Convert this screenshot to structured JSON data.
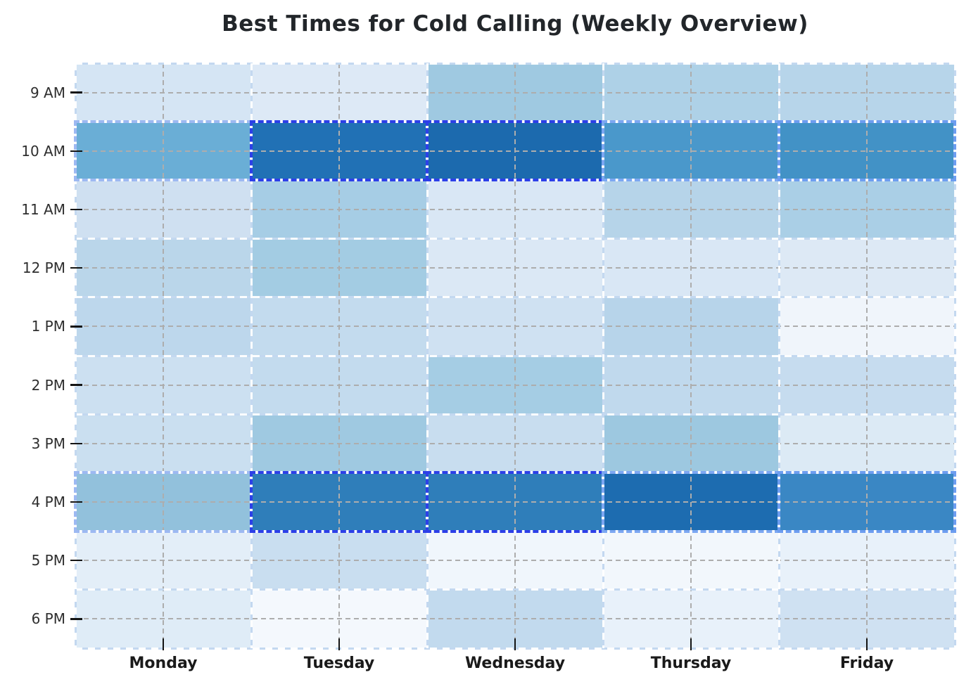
{
  "title": "Best Times for Cold Calling (Weekly Overview)",
  "chart_data": {
    "type": "heatmap",
    "title": "Best Times for Cold Calling (Weekly Overview)",
    "x_categories": [
      "Monday",
      "Tuesday",
      "Wednesday",
      "Thursday",
      "Friday"
    ],
    "y_categories": [
      "9 AM",
      "10 AM",
      "11 AM",
      "12 PM",
      "1 PM",
      "2 PM",
      "3 PM",
      "4 PM",
      "5 PM",
      "6 PM"
    ],
    "value_scale": [
      0,
      100
    ],
    "values": [
      [
        28,
        24,
        48,
        42,
        40
      ],
      [
        62,
        85,
        88,
        70,
        72
      ],
      [
        34,
        46,
        26,
        40,
        44
      ],
      [
        41,
        47,
        25,
        26,
        24
      ],
      [
        40,
        37,
        32,
        41,
        10
      ],
      [
        33,
        37,
        46,
        38,
        35
      ],
      [
        35,
        48,
        36,
        49,
        24
      ],
      [
        55,
        78,
        78,
        86,
        76
      ],
      [
        18,
        34,
        10,
        8,
        14
      ],
      [
        21,
        6,
        37,
        14,
        31
      ]
    ],
    "cell_colors": [
      [
        "#d5e5f4",
        "#dde9f6",
        "#9fc9e1",
        "#aed1e7",
        "#b7d5ea"
      ],
      [
        "#6aaed6",
        "#2171b5",
        "#1c6aae",
        "#4a98cb",
        "#4292c6"
      ],
      [
        "#cfe0f1",
        "#a6cde5",
        "#d9e7f5",
        "#b6d4e9",
        "#aacfe6"
      ],
      [
        "#bad6ea",
        "#a3cce3",
        "#dbe8f5",
        "#d9e7f5",
        "#dde9f5"
      ],
      [
        "#bdd7ec",
        "#c3dbee",
        "#cfe1f2",
        "#b7d4ea",
        "#f0f5fb"
      ],
      [
        "#cce0f1",
        "#c3dbee",
        "#a5cde4",
        "#c0d9ed",
        "#c6dcef"
      ],
      [
        "#cadff0",
        "#9fc9e1",
        "#c8ddef",
        "#9dc8e0",
        "#dceaf5"
      ],
      [
        "#92c1dc",
        "#2f7eba",
        "#2f7eba",
        "#1d6cb0",
        "#3a87c4"
      ],
      [
        "#e3eef8",
        "#c9def0",
        "#f0f6fc",
        "#f2f7fc",
        "#e8f1fa"
      ],
      [
        "#dfecf7",
        "#f4f8fd",
        "#c2daee",
        "#e8f1fa",
        "#cfe1f2"
      ]
    ],
    "highlighted_rows": [
      "10 AM",
      "4 PM"
    ],
    "highlights": [
      {
        "row": "10 AM",
        "col": "Monday",
        "border_color": "#9db9f2"
      },
      {
        "row": "10 AM",
        "col": "Tuesday",
        "border_color": "#2c3fe8"
      },
      {
        "row": "10 AM",
        "col": "Wednesday",
        "border_color": "#2c3fe8"
      },
      {
        "row": "10 AM",
        "col": "Thursday",
        "border_color": "#7ca7f2"
      },
      {
        "row": "10 AM",
        "col": "Friday",
        "border_color": "#6d9df0"
      },
      {
        "row": "4 PM",
        "col": "Monday",
        "border_color": "#9db9f2"
      },
      {
        "row": "4 PM",
        "col": "Tuesday",
        "border_color": "#2c3fe8"
      },
      {
        "row": "4 PM",
        "col": "Wednesday",
        "border_color": "#2c3fe8"
      },
      {
        "row": "4 PM",
        "col": "Thursday",
        "border_color": "#7ca7f2"
      },
      {
        "row": "4 PM",
        "col": "Friday",
        "border_color": "#6d9df0"
      }
    ],
    "colormap": "Blues",
    "grid": "on",
    "legend": "none",
    "styles": {
      "background": "#ffffff",
      "title_color": "#22262a",
      "y_tick_label_color": "#2e2e2e",
      "x_tick_label_color": "#1a1a1a",
      "tick_mark_color": "#141414",
      "center_gridline_color": "#adadad",
      "cell_boundary_line_color": "#ffffff",
      "cell_boundary_alt_color": "#c3d8f0"
    }
  }
}
